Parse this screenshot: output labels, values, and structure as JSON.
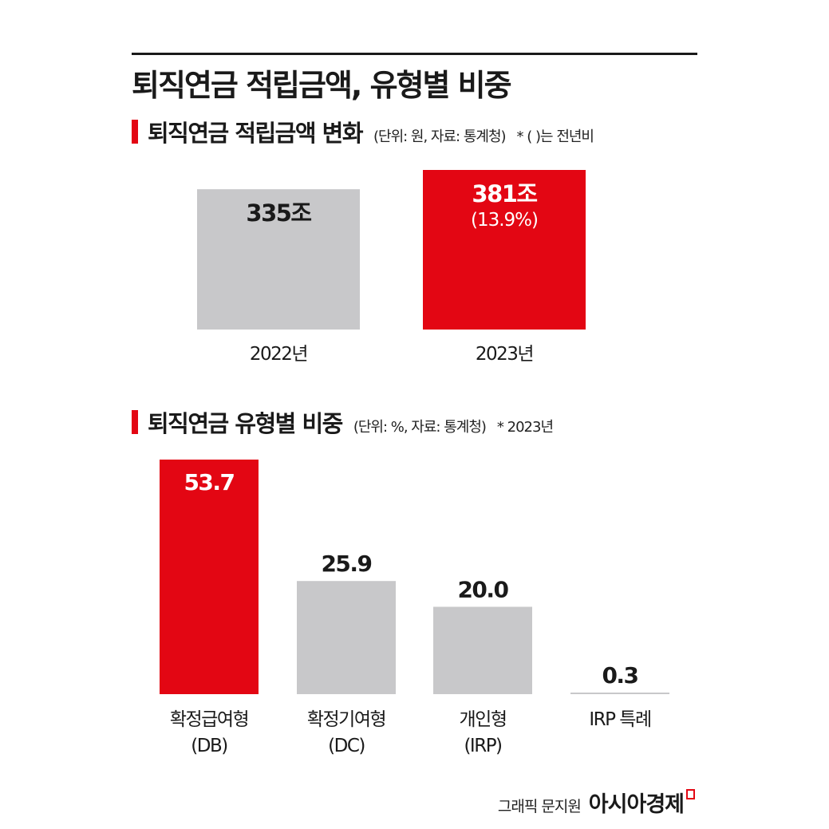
{
  "main_title": "퇴직연금 적립금액, 유형별 비중",
  "section1": {
    "title": "퇴직연금 적립금액 변화",
    "note": "(단위: 원, 자료: 통계청)",
    "note2": "* ( )는 전년비"
  },
  "section2": {
    "title": "퇴직연금 유형별 비중",
    "note": "(단위: %, 자료: 통계청)",
    "note2": "* 2023년"
  },
  "footer": {
    "credit": "그래픽 문지원",
    "brand": "아시아경제"
  },
  "colors": {
    "highlight": "#e30613",
    "neutral": "#c8c8ca",
    "text": "#1a1a1a",
    "highlight_text": "#ffffff"
  },
  "chart_data": [
    {
      "type": "bar",
      "title": "퇴직연금 적립금액 변화",
      "categories": [
        "2022년",
        "2023년"
      ],
      "values": [
        335,
        381
      ],
      "value_labels": [
        "335조",
        "381조"
      ],
      "sub_labels": [
        "",
        "(13.9%)"
      ],
      "highlight": [
        false,
        true
      ],
      "ylim": [
        0,
        381
      ],
      "grid": false
    },
    {
      "type": "bar",
      "title": "퇴직연금 유형별 비중",
      "categories": [
        [
          "확정급여형",
          "(DB)"
        ],
        [
          "확정기여형",
          "(DC)"
        ],
        [
          "개인형",
          "(IRP)"
        ],
        [
          "IRP 특례"
        ]
      ],
      "values": [
        53.7,
        25.9,
        20.0,
        0.3
      ],
      "value_labels": [
        "53.7",
        "25.9",
        "20.0",
        "0.3"
      ],
      "highlight": [
        true,
        false,
        false,
        false
      ],
      "ylim": [
        0,
        53.7
      ],
      "grid": false
    }
  ]
}
